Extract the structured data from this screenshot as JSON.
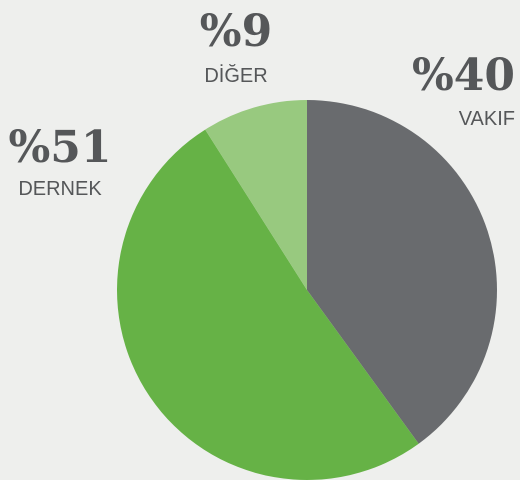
{
  "chart_data": {
    "type": "pie",
    "categories": [
      "VAKIF",
      "DERNEK",
      "DİĞER"
    ],
    "values": [
      40,
      51,
      9
    ],
    "value_labels": [
      "%40",
      "%51",
      "%9"
    ],
    "colors": [
      "#696b6e",
      "#66b246",
      "#98c97f"
    ]
  }
}
